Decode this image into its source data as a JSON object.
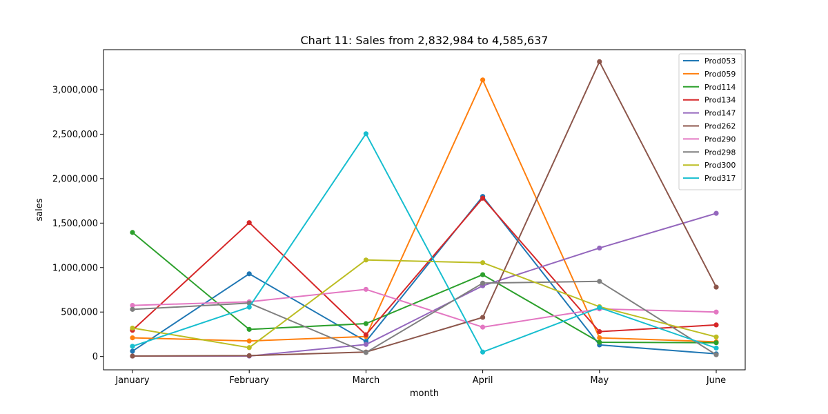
{
  "chart_data": {
    "type": "line",
    "title": "Chart 11: Sales from 2,832,984 to 4,585,637",
    "xlabel": "month",
    "ylabel": "sales",
    "categories": [
      "January",
      "February",
      "March",
      "April",
      "May",
      "June"
    ],
    "ylim": [
      -150000,
      3450000
    ],
    "yticks": [
      0,
      500000,
      1000000,
      1500000,
      2000000,
      2500000,
      3000000
    ],
    "ytick_labels": [
      "0",
      "500,000",
      "1,000,000",
      "1,500,000",
      "2,000,000",
      "2,500,000",
      "3,000,000"
    ],
    "grid": false,
    "legend_position": "top-right",
    "series": [
      {
        "name": "Prod053",
        "color": "#1f77b4",
        "values": [
          60000,
          930000,
          170000,
          1800000,
          130000,
          30000
        ]
      },
      {
        "name": "Prod059",
        "color": "#ff7f0e",
        "values": [
          210000,
          175000,
          225000,
          3110000,
          210000,
          165000
        ]
      },
      {
        "name": "Prod114",
        "color": "#2ca02c",
        "values": [
          1395000,
          305000,
          370000,
          920000,
          160000,
          155000
        ]
      },
      {
        "name": "Prod134",
        "color": "#d62728",
        "values": [
          295000,
          1505000,
          245000,
          1780000,
          280000,
          355000
        ]
      },
      {
        "name": "Prod147",
        "color": "#9467bd",
        "values": [
          5000,
          5000,
          135000,
          795000,
          1220000,
          1610000
        ]
      },
      {
        "name": "Prod262",
        "color": "#8c564b",
        "values": [
          5000,
          10000,
          50000,
          440000,
          3315000,
          780000
        ]
      },
      {
        "name": "Prod290",
        "color": "#e377c2",
        "values": [
          575000,
          615000,
          755000,
          330000,
          535000,
          500000
        ]
      },
      {
        "name": "Prod298",
        "color": "#7f7f7f",
        "values": [
          530000,
          600000,
          45000,
          825000,
          845000,
          20000
        ]
      },
      {
        "name": "Prod300",
        "color": "#bcbd22",
        "values": [
          320000,
          100000,
          1085000,
          1055000,
          560000,
          220000
        ]
      },
      {
        "name": "Prod317",
        "color": "#17becf",
        "values": [
          115000,
          555000,
          2505000,
          50000,
          550000,
          95000
        ]
      }
    ]
  }
}
